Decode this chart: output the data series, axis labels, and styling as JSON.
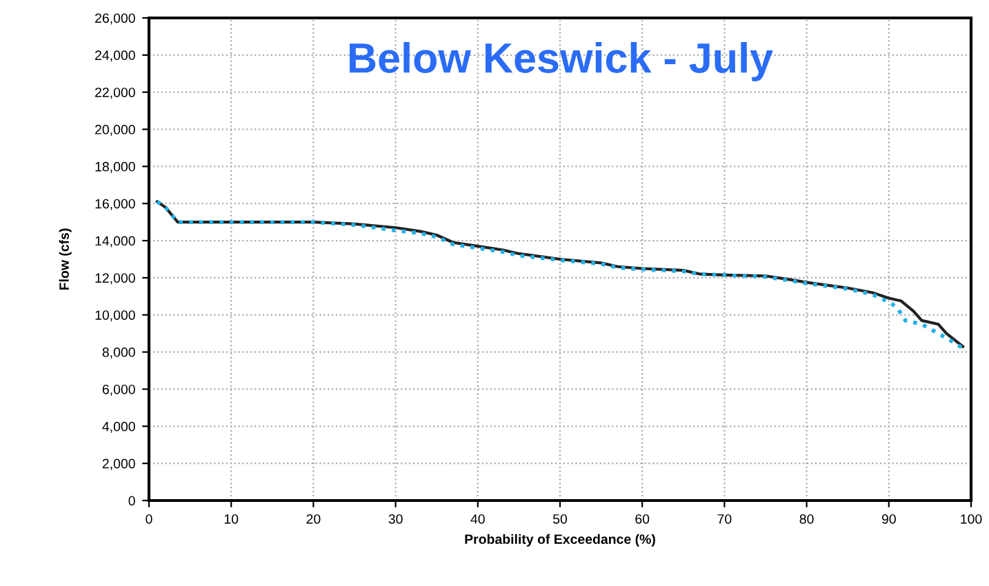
{
  "chart_data": {
    "type": "line",
    "title": "Below Keswick - July",
    "xlabel": "Probability of Exceedance (%)",
    "ylabel": "Flow (cfs)",
    "xlim": [
      0,
      100
    ],
    "xticks": [
      0,
      10,
      20,
      30,
      40,
      50,
      60,
      70,
      80,
      90,
      100
    ],
    "ylim": [
      0,
      26000
    ],
    "yticks": [
      {
        "value": 0,
        "label": "0"
      },
      {
        "value": 2000,
        "label": "2,000"
      },
      {
        "value": 4000,
        "label": "4,000"
      },
      {
        "value": 6000,
        "label": "6,000"
      },
      {
        "value": 8000,
        "label": "8,000"
      },
      {
        "value": 10000,
        "label": "10,000"
      },
      {
        "value": 12000,
        "label": "12,000"
      },
      {
        "value": 14000,
        "label": "14,000"
      },
      {
        "value": 16000,
        "label": "16,000"
      },
      {
        "value": 18000,
        "label": "18,000"
      },
      {
        "value": 20000,
        "label": "20,000"
      },
      {
        "value": 22000,
        "label": "22,000"
      },
      {
        "value": 24000,
        "label": "24,000"
      },
      {
        "value": 26000,
        "label": "26,000"
      }
    ],
    "grid": true,
    "series": [
      {
        "color": "#222222",
        "line_style": "solid",
        "x": [
          1,
          2,
          3.5,
          10,
          20,
          25,
          30,
          33,
          35,
          37,
          40,
          43,
          45,
          50,
          55,
          57,
          60,
          65,
          67,
          70,
          75,
          78,
          80,
          85,
          88,
          90,
          91.5,
          93,
          94,
          96,
          97,
          99
        ],
        "values": [
          16100,
          15800,
          15000,
          15000,
          15000,
          14900,
          14700,
          14500,
          14300,
          13900,
          13700,
          13500,
          13300,
          13000,
          12800,
          12600,
          12500,
          12400,
          12200,
          12150,
          12100,
          11900,
          11750,
          11450,
          11200,
          10900,
          10750,
          10200,
          9700,
          9500,
          9000,
          8300
        ]
      },
      {
        "color": "#22b0e8",
        "line_style": "dotted",
        "x": [
          1,
          2,
          3.5,
          10,
          20,
          25,
          30,
          33,
          35,
          37,
          40,
          43,
          45,
          50,
          55,
          57,
          60,
          65,
          67,
          70,
          75,
          78,
          80,
          85,
          88,
          90,
          91,
          92,
          94,
          96,
          98,
          99
        ],
        "values": [
          16100,
          15800,
          15000,
          15000,
          15000,
          14850,
          14550,
          14400,
          14200,
          13800,
          13600,
          13400,
          13200,
          12950,
          12750,
          12550,
          12450,
          12350,
          12200,
          12150,
          12050,
          11850,
          11700,
          11400,
          11100,
          10700,
          10400,
          9700,
          9500,
          9000,
          8500,
          8200
        ]
      }
    ]
  }
}
